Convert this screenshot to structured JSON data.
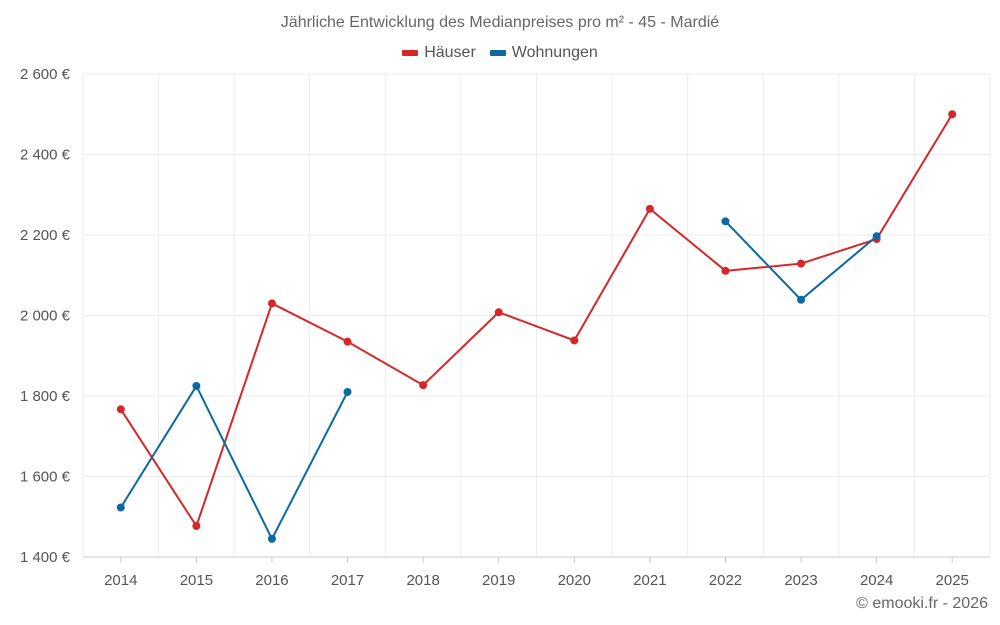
{
  "title": "Jährliche Entwicklung des Medianpreises pro m² - 45 - Mardié",
  "credit": "© emooki.fr - 2026",
  "chart_data": {
    "type": "line",
    "categories": [
      "2014",
      "2015",
      "2016",
      "2017",
      "2018",
      "2019",
      "2020",
      "2021",
      "2022",
      "2023",
      "2024",
      "2025"
    ],
    "series": [
      {
        "name": "Häuser",
        "color": "#d62728",
        "values": [
          1767,
          1477,
          2030,
          1935,
          1827,
          2008,
          1938,
          2265,
          2111,
          2129,
          2190,
          2500
        ]
      },
      {
        "name": "Wohnungen",
        "color": "#0a6aa1",
        "values": [
          1523,
          1825,
          1445,
          1810,
          null,
          null,
          null,
          null,
          2234,
          2039,
          2197,
          null
        ]
      }
    ],
    "ylim": [
      1400,
      2600
    ],
    "yticks": [
      1400,
      1600,
      1800,
      2000,
      2200,
      2400,
      2600
    ],
    "ytick_labels": [
      "1 400 €",
      "1 600 €",
      "1 800 €",
      "2 000 €",
      "2 200 €",
      "2 400 €",
      "2 600 €"
    ],
    "grid": true,
    "legend_position": "top"
  }
}
